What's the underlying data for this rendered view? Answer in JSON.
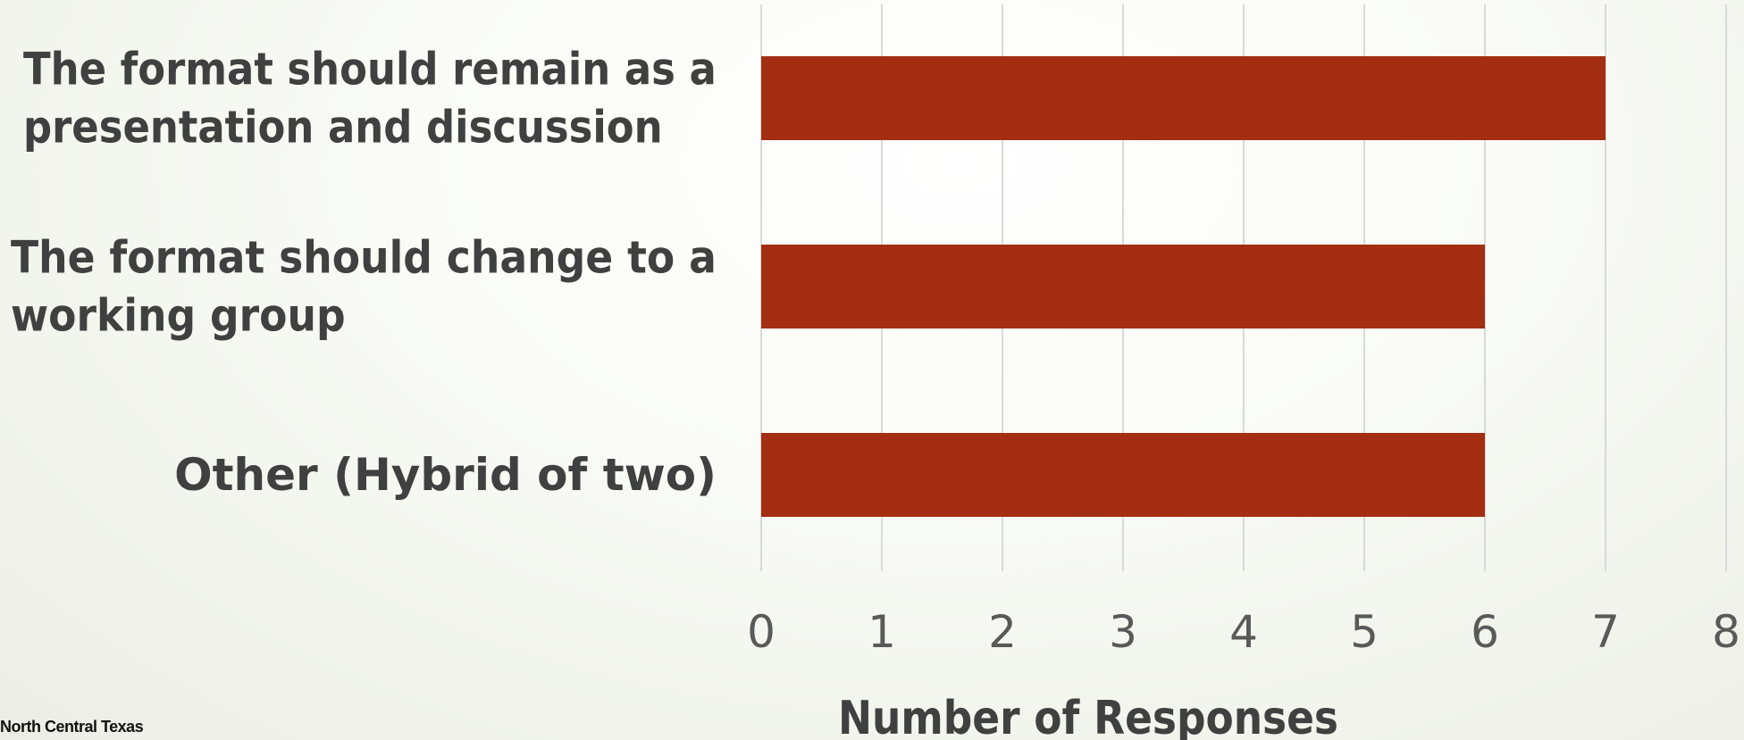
{
  "chart_data": {
    "type": "bar",
    "orientation": "horizontal",
    "categories": [
      "The format should remain as a presentation and discussion",
      "The format should change to a working group",
      "Other (Hybrid of two)"
    ],
    "category_lines": [
      [
        "The format should remain as a",
        "presentation and discussion"
      ],
      [
        "The format should change to a",
        "working group"
      ],
      [
        "Other (Hybrid of two)"
      ]
    ],
    "values": [
      7,
      6,
      6
    ],
    "xlabel": "Number of Responses",
    "ylabel": "",
    "title": "",
    "xlim": [
      0,
      8
    ],
    "xticks": [
      "0",
      "1",
      "2",
      "3",
      "4",
      "5",
      "6",
      "7",
      "8"
    ],
    "grid": "vertical",
    "bar_color": "#a32e12"
  },
  "footer": {
    "logo_text": "North Central Texas"
  }
}
